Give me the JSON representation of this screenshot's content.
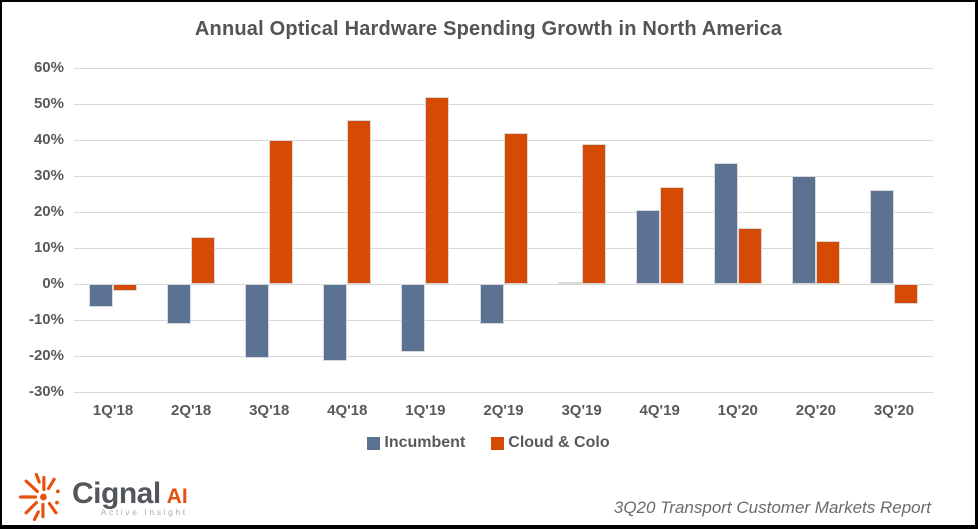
{
  "title": "Annual Optical Hardware Spending Growth in North America",
  "chart_data": {
    "type": "bar",
    "categories": [
      "1Q'18",
      "2Q'18",
      "3Q'18",
      "4Q'18",
      "1Q'19",
      "2Q'19",
      "3Q'19",
      "4Q'19",
      "1Q'20",
      "2Q'20",
      "3Q'20"
    ],
    "series": [
      {
        "name": "Incumbent",
        "color": "#5b7292",
        "values": [
          -6.5,
          -11,
          -20.5,
          -21.5,
          -19,
          -11,
          0.5,
          20.5,
          33.5,
          30,
          26
        ]
      },
      {
        "name": "Cloud & Colo",
        "color": "#d54a05",
        "values": [
          -2,
          13,
          40,
          45.5,
          52,
          42,
          39,
          27,
          15.5,
          12,
          -5.5
        ]
      }
    ],
    "title": "Annual Optical Hardware Spending Growth in North America",
    "xlabel": "",
    "ylabel": "",
    "ylim": [
      -30,
      60
    ],
    "ytick_step": 10,
    "ytick_suffix": "%",
    "grid": true,
    "legend_position": "bottom",
    "bar_outline_color": "#d9d9d9",
    "gridline_color": "#d9d9d9"
  },
  "footer": {
    "report_label": "3Q20 Transport Customer Markets Report"
  },
  "logo": {
    "brand": "Cignal",
    "brand_suffix": "AI",
    "tagline": "Active Insight",
    "accent_color": "#e8500f"
  }
}
